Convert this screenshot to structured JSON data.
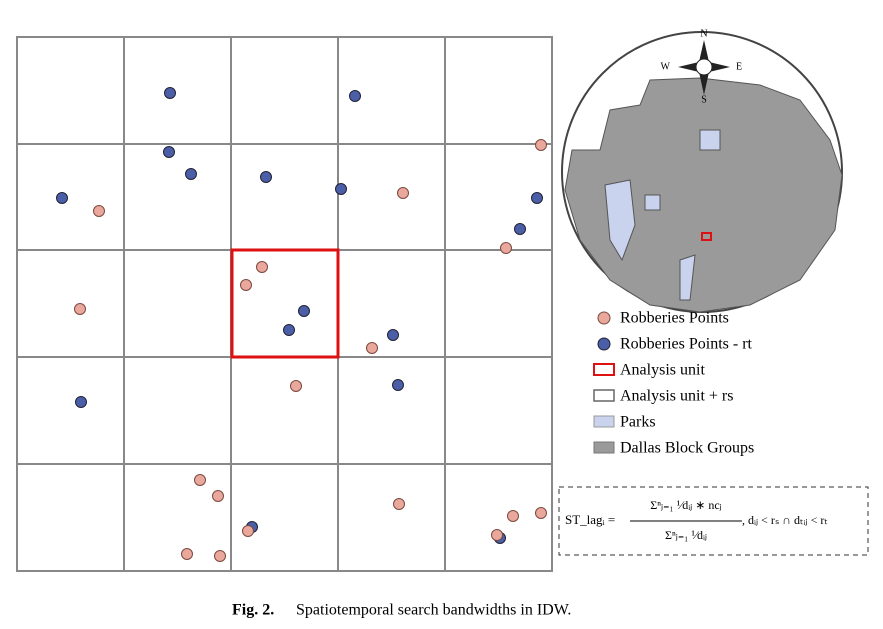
{
  "compass": {
    "n": "N",
    "e": "E",
    "s": "S",
    "w": "W"
  },
  "legend": [
    "Robberies Points",
    "Robberies Points - rt",
    "Analysis unit",
    "Analysis unit + rs",
    "Parks",
    "Dallas Block Groups"
  ],
  "formula": {
    "lhs": "ST_lagᵢ =",
    "numerator": "Σⁿⱼ₌₁ ¹⁄dᵢⱼ ∗ ncⱼ",
    "denominator": "Σⁿⱼ₌₁ ¹⁄dᵢⱼ",
    "condition": ", dᵢⱼ < rₛ ∩ dₜᵢⱼ < rₜ"
  },
  "caption": {
    "label": "Fig. 2.",
    "text": "Spatiotemporal search bandwidths in IDW."
  }
}
